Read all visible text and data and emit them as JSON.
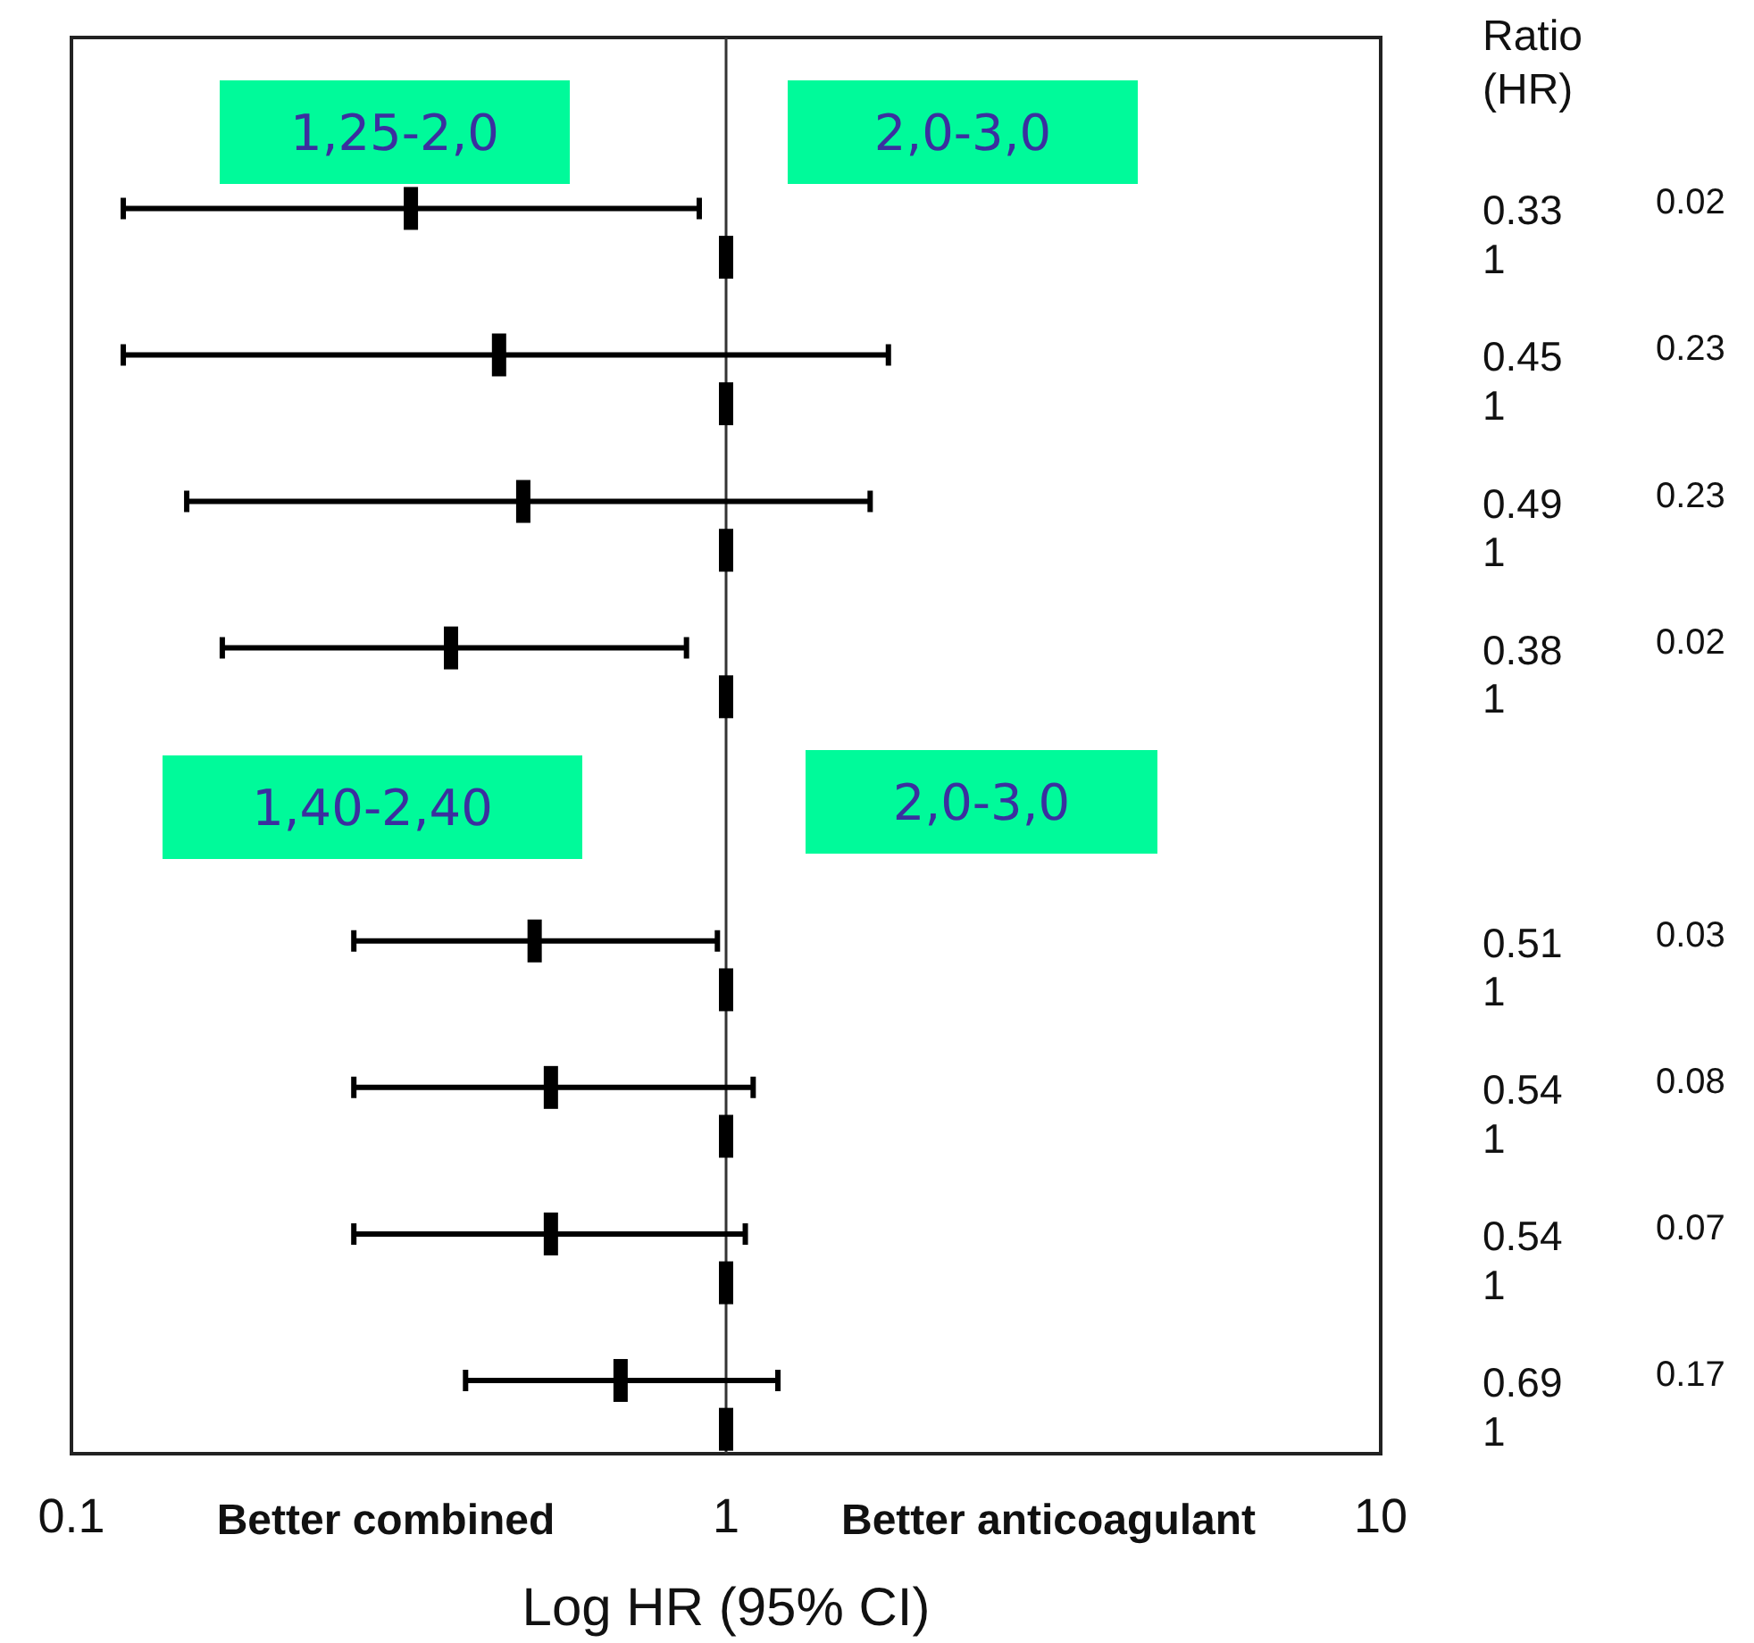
{
  "chart_data": {
    "type": "scatter",
    "orientation": "horizontal",
    "marker": "square",
    "grid": false,
    "xlabel": "Log HR (95% CI)",
    "log": "x",
    "xlim": [
      0.1,
      10
    ],
    "xticks": [
      0.1,
      1,
      10
    ],
    "tick_labels": "x",
    "categories": [
      null,
      null,
      null,
      null,
      null,
      null,
      null,
      null,
      null,
      null,
      null,
      null,
      null,
      null,
      null,
      null,
      null,
      null,
      null,
      null,
      null,
      null,
      null,
      null,
      null,
      null,
      null,
      null,
      null
    ],
    "series": [
      {
        "color": "#000000",
        "values": [
          null,
          null,
          null,
          0.33,
          null,
          null,
          0.45,
          null,
          null,
          0.49,
          null,
          null,
          0.38,
          null,
          null,
          null,
          null,
          null,
          0.51,
          null,
          null,
          0.54,
          null,
          null,
          0.54,
          null,
          null,
          0.69,
          null
        ],
        "errors": [
          null,
          null,
          null,
          [
            0.12,
            0.91
          ],
          null,
          null,
          [
            0.12,
            1.77
          ],
          null,
          null,
          [
            0.15,
            1.66
          ],
          null,
          null,
          [
            0.17,
            0.87
          ],
          null,
          null,
          null,
          null,
          null,
          [
            0.27,
            0.97
          ],
          null,
          null,
          [
            0.27,
            1.1
          ],
          null,
          null,
          [
            0.27,
            1.07
          ],
          null,
          null,
          [
            0.4,
            1.2
          ],
          null
        ],
        "value_labels": [
          null,
          null,
          null,
          "0.33",
          null,
          null,
          "0.45",
          null,
          null,
          "0.49",
          null,
          null,
          "0.38",
          null,
          null,
          null,
          null,
          null,
          "0.51",
          null,
          null,
          "0.54",
          null,
          null,
          "0.54",
          null,
          null,
          "0.69",
          null
        ]
      },
      {
        "color": "#000000",
        "values": [
          null,
          null,
          null,
          null,
          1,
          null,
          null,
          1,
          null,
          null,
          1,
          null,
          null,
          1,
          null,
          null,
          null,
          null,
          null,
          1,
          null,
          null,
          1,
          null,
          null,
          1,
          null,
          null,
          1
        ],
        "value_labels": [
          null,
          null,
          null,
          null,
          "1",
          null,
          null,
          "1",
          null,
          null,
          "1",
          null,
          null,
          "1",
          null,
          null,
          null,
          null,
          null,
          "1",
          null,
          null,
          "1",
          null,
          null,
          "1",
          null,
          null,
          "1"
        ]
      }
    ],
    "ref_lines": [
      {
        "axis": "x",
        "value": 1,
        "color": "#333333"
      }
    ],
    "annotations": [
      "1,25-2,0",
      "2,0-3,0",
      "1,40-2,40",
      "2,0-3,0",
      "Better combined",
      "Better anticoagulant",
      "Ratio (HR)",
      "0.02",
      "0.23",
      "0.23",
      "0.02",
      "0.03",
      "0.08",
      "0.07",
      "0.17"
    ]
  }
}
